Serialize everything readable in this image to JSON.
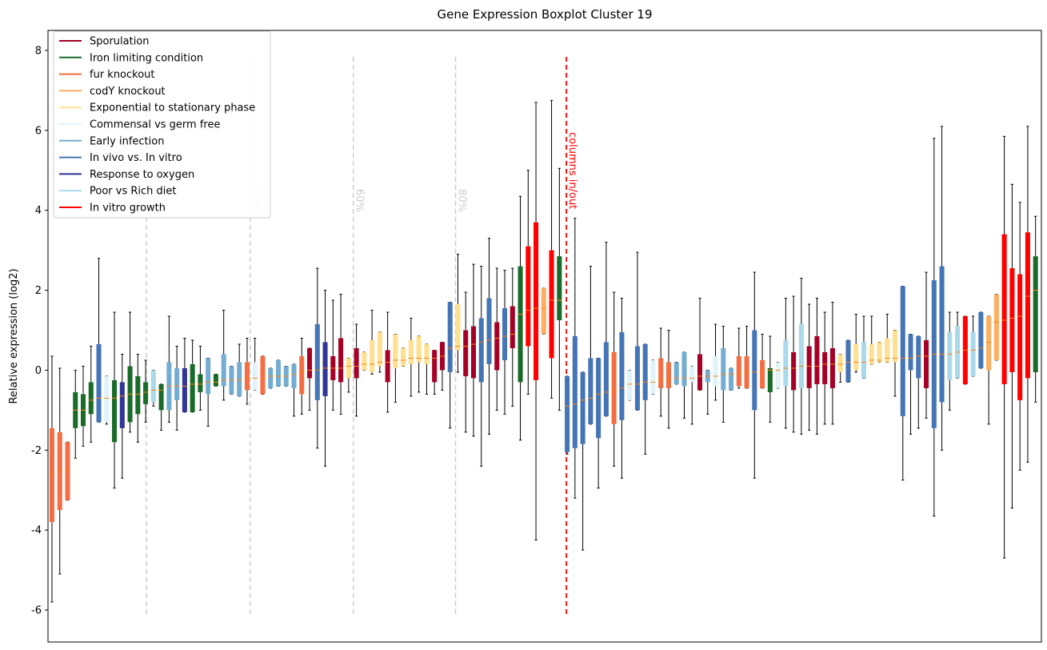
{
  "chart_data": {
    "type": "boxplot",
    "title": "Gene Expression Boxplot Cluster 19",
    "y_label": "Relative expression (log2)",
    "ylim": [
      -6.8,
      8.5
    ],
    "yticks": [
      -6,
      -4,
      -2,
      0,
      2,
      4,
      6,
      8
    ],
    "xlim": [
      0.49,
      127.75
    ],
    "median_color": "#ff7f0e",
    "legend_position": "upper left",
    "series": [
      {
        "name": "Sporulation",
        "color": "#a50026"
      },
      {
        "name": "Iron limiting condition",
        "color": "#1a6b2a"
      },
      {
        "name": "fur knockout",
        "color": "#f46d43"
      },
      {
        "name": "codY knockout",
        "color": "#fdae61"
      },
      {
        "name": "Exponential to stationary phase",
        "color": "#fee090"
      },
      {
        "name": "Commensal vs germ free",
        "color": "#e0f3f8"
      },
      {
        "name": "Early infection",
        "color": "#74add1"
      },
      {
        "name": "In vivo vs. In vitro",
        "color": "#4575b4"
      },
      {
        "name": "Response to oxygen",
        "color": "#313695"
      },
      {
        "name": "Poor vs Rich diet",
        "color": "#abd9e9"
      },
      {
        "name": "In vitro growth",
        "color": "#ff0000"
      }
    ],
    "vline_ylim": [
      -6.1,
      7.9
    ],
    "vlines": [
      {
        "x": 13.1,
        "color": "#cccccc"
      },
      {
        "x": 26.4,
        "label": "40%",
        "color": "#cccccc"
      },
      {
        "x": 39.6,
        "label": "60%",
        "color": "#cccccc"
      },
      {
        "x": 52.7,
        "label": "80%",
        "color": "#cccccc"
      },
      {
        "x": 66.9,
        "label": "columns in/out",
        "color": "#ff0000"
      }
    ],
    "boxes": {
      "x": [
        1,
        2,
        3,
        4,
        5,
        6,
        7,
        8,
        9,
        10,
        11,
        12,
        13,
        14,
        15,
        16,
        17,
        18,
        19,
        20,
        21,
        22,
        23,
        24,
        25,
        26,
        27,
        28,
        29,
        30,
        31,
        32,
        33,
        34,
        35,
        36,
        37,
        38,
        39,
        40,
        41,
        42,
        43,
        44,
        45,
        46,
        47,
        48,
        49,
        50,
        51,
        52,
        53,
        54,
        55,
        56,
        57,
        58,
        59,
        60,
        61,
        62,
        63,
        64,
        65,
        66,
        67,
        68,
        69,
        70,
        71,
        72,
        73,
        74,
        75,
        76,
        77,
        78,
        79,
        80,
        81,
        82,
        83,
        84,
        85,
        86,
        87,
        88,
        89,
        90,
        91,
        92,
        93,
        94,
        95,
        96,
        97,
        98,
        99,
        100,
        101,
        102,
        103,
        104,
        105,
        106,
        107,
        108,
        109,
        110,
        111,
        112,
        113,
        114,
        115,
        116,
        117,
        118,
        119,
        120,
        121,
        122,
        123,
        124,
        125,
        126,
        127
      ],
      "whislo": [
        -5.8,
        -5.1,
        -3.25,
        -2.2,
        -1.9,
        -1.8,
        -1.3,
        -1.35,
        -2.95,
        -2.7,
        -1.55,
        -1.8,
        -1.3,
        -0.9,
        -1.5,
        -1.3,
        -1.5,
        -1.05,
        -1.05,
        -1.0,
        -1.4,
        -0.4,
        -0.75,
        -0.6,
        -0.65,
        -0.85,
        -0.5,
        -0.6,
        -0.45,
        -0.4,
        -0.4,
        -1.15,
        -1.1,
        -1.0,
        -1.95,
        -2.4,
        -1.0,
        -1.1,
        -0.55,
        -1.15,
        0.0,
        -0.1,
        -0.05,
        -1.05,
        -0.8,
        0.1,
        -0.65,
        -0.55,
        -0.6,
        -0.6,
        -0.5,
        -1.45,
        -0.05,
        -1.55,
        -1.65,
        -2.4,
        -1.6,
        -1.0,
        -1.1,
        -0.9,
        -1.75,
        -0.6,
        -4.25,
        0.9,
        -0.7,
        -1.0,
        -2.1,
        -3.2,
        -4.5,
        -1.35,
        -2.95,
        -1.15,
        -2.4,
        -2.7,
        -0.75,
        -1.0,
        -2.1,
        -0.6,
        -1.15,
        -1.45,
        -0.35,
        -1.2,
        -1.35,
        -0.5,
        -1.1,
        -0.75,
        -1.3,
        -0.5,
        -0.45,
        -0.45,
        -2.7,
        -0.45,
        -1.3,
        -0.45,
        -1.45,
        -1.55,
        -1.6,
        -1.5,
        -1.6,
        -1.35,
        -1.35,
        -0.3,
        -0.3,
        -0.05,
        -0.2,
        0.15,
        0.2,
        0.2,
        -0.65,
        -2.75,
        -1.6,
        -1.45,
        -1.2,
        -3.65,
        -2.0,
        -1.0,
        -0.2,
        -0.35,
        -0.15,
        0.05,
        -1.35,
        0.25,
        -4.7,
        -3.45,
        -2.5,
        -2.3,
        -0.8
      ],
      "q1": [
        -3.8,
        -3.5,
        -3.25,
        -1.45,
        -1.4,
        -1.1,
        -1.3,
        -1.3,
        -1.8,
        -1.45,
        -1.3,
        -1.1,
        -0.85,
        -0.8,
        -1.0,
        -1.0,
        -0.75,
        -1.05,
        -1.05,
        -0.55,
        -0.6,
        -0.4,
        -0.4,
        -0.6,
        -0.65,
        -0.5,
        -0.5,
        -0.6,
        -0.45,
        -0.4,
        -0.4,
        -0.45,
        -0.6,
        -0.2,
        -0.75,
        -0.65,
        -0.25,
        -0.3,
        -0.2,
        -0.2,
        0.0,
        -0.05,
        0.1,
        -0.3,
        0.05,
        0.1,
        0.15,
        0.2,
        0.15,
        -0.3,
        0.0,
        -0.05,
        0.5,
        -0.15,
        -0.2,
        -0.3,
        0.15,
        0.0,
        0.25,
        0.55,
        -0.3,
        0.6,
        -0.25,
        0.9,
        0.3,
        1.25,
        -2.05,
        -1.95,
        -1.85,
        -1.35,
        -1.7,
        -1.15,
        -1.35,
        -1.25,
        -0.75,
        -1.0,
        -0.75,
        -0.6,
        -0.45,
        -0.45,
        -0.35,
        -0.4,
        -0.3,
        -0.5,
        -0.3,
        -0.4,
        -0.5,
        -0.5,
        -0.4,
        -0.45,
        -1.0,
        -0.45,
        -0.55,
        -0.45,
        -0.4,
        -0.5,
        -0.45,
        -0.45,
        -0.35,
        -0.35,
        -0.45,
        -0.05,
        -0.3,
        0.0,
        -0.2,
        0.15,
        0.2,
        0.2,
        0.2,
        -1.15,
        0.0,
        -0.2,
        -0.45,
        -1.45,
        -0.8,
        -0.25,
        -0.2,
        -0.35,
        -0.15,
        0.05,
        0.0,
        0.25,
        -0.35,
        -0.05,
        -0.75,
        -0.2,
        -0.05
      ],
      "median": [
        -2.6,
        -2.5,
        -2.5,
        -1.0,
        -1.0,
        -0.75,
        -0.7,
        -0.7,
        -0.7,
        -0.65,
        -0.6,
        -0.6,
        -0.55,
        -0.5,
        -0.5,
        -0.4,
        -0.4,
        -0.4,
        -0.35,
        -0.35,
        -0.3,
        -0.3,
        -0.25,
        -0.25,
        -0.25,
        -0.2,
        -0.2,
        -0.2,
        -0.15,
        -0.15,
        -0.15,
        -0.1,
        -0.05,
        0.0,
        0.0,
        0.05,
        0.05,
        0.05,
        0.1,
        0.1,
        0.15,
        0.15,
        0.2,
        0.2,
        0.25,
        0.25,
        0.3,
        0.3,
        0.3,
        0.3,
        0.35,
        0.55,
        0.6,
        0.6,
        0.65,
        0.7,
        0.75,
        0.8,
        0.85,
        0.9,
        1.4,
        1.5,
        1.55,
        1.55,
        1.75,
        1.75,
        -0.9,
        -0.85,
        -0.75,
        -0.7,
        -0.6,
        -0.55,
        -0.5,
        -0.45,
        -0.35,
        -0.35,
        -0.3,
        -0.3,
        -0.25,
        -0.25,
        -0.2,
        -0.2,
        -0.2,
        -0.15,
        -0.15,
        -0.15,
        -0.1,
        -0.1,
        -0.1,
        -0.05,
        -0.05,
        0.0,
        0.0,
        0.0,
        0.05,
        0.05,
        0.1,
        0.1,
        0.1,
        0.15,
        0.15,
        0.15,
        0.2,
        0.2,
        0.2,
        0.25,
        0.25,
        0.3,
        0.3,
        0.3,
        0.3,
        0.35,
        0.35,
        0.4,
        0.4,
        0.4,
        0.45,
        0.5,
        0.5,
        0.55,
        0.7,
        1.2,
        1.25,
        1.3,
        1.35,
        1.85,
        2.0
      ],
      "q3": [
        -1.45,
        -1.55,
        -1.8,
        -0.55,
        -0.6,
        -0.3,
        0.65,
        -0.15,
        -0.25,
        -0.3,
        0.1,
        -0.15,
        -0.3,
        0.0,
        -0.35,
        0.2,
        0.05,
        0.05,
        0.15,
        -0.1,
        0.3,
        -0.1,
        0.4,
        0.1,
        0.2,
        0.2,
        0.2,
        0.35,
        0.05,
        0.25,
        0.1,
        0.15,
        0.35,
        0.55,
        1.15,
        0.7,
        0.35,
        0.8,
        0.3,
        0.55,
        0.45,
        0.75,
        0.95,
        0.5,
        0.9,
        0.55,
        0.75,
        0.85,
        0.65,
        0.5,
        0.7,
        1.7,
        1.65,
        1.0,
        1.1,
        1.3,
        1.8,
        1.2,
        1.55,
        1.6,
        2.6,
        3.1,
        3.7,
        2.05,
        3.0,
        2.85,
        -0.15,
        0.85,
        -0.05,
        0.3,
        0.3,
        0.7,
        0.45,
        0.95,
        0.0,
        0.6,
        0.65,
        0.25,
        0.3,
        0.2,
        0.2,
        0.45,
        0.1,
        0.4,
        0.0,
        0.35,
        0.55,
        0.05,
        0.35,
        0.35,
        1.0,
        0.25,
        0.05,
        0.2,
        0.75,
        0.45,
        1.15,
        0.6,
        0.85,
        0.45,
        0.55,
        0.4,
        0.75,
        0.65,
        0.7,
        0.65,
        0.7,
        0.8,
        1.0,
        2.1,
        0.9,
        0.85,
        0.75,
        2.25,
        2.6,
        0.95,
        1.1,
        1.35,
        0.95,
        1.45,
        1.35,
        1.9,
        3.4,
        2.55,
        2.4,
        3.45,
        2.85
      ],
      "whishi": [
        0.35,
        0.05,
        -1.8,
        0.0,
        0.1,
        0.6,
        2.8,
        -0.15,
        1.45,
        0.4,
        1.45,
        0.4,
        0.25,
        0.0,
        -0.35,
        1.35,
        0.6,
        0.8,
        0.75,
        0.6,
        0.3,
        -0.1,
        1.5,
        0.1,
        0.65,
        0.8,
        0.8,
        0.35,
        0.05,
        0.25,
        0.1,
        0.15,
        0.8,
        0.55,
        2.55,
        2.0,
        1.75,
        1.9,
        0.3,
        1.15,
        0.45,
        1.5,
        0.95,
        1.45,
        0.9,
        0.55,
        1.3,
        0.85,
        0.65,
        0.5,
        0.7,
        1.7,
        2.9,
        1.95,
        2.65,
        2.6,
        3.3,
        2.55,
        2.5,
        2.55,
        4.35,
        5.0,
        6.7,
        2.05,
        6.75,
        5.05,
        -0.15,
        3.8,
        -0.05,
        2.6,
        0.3,
        3.2,
        1.95,
        1.8,
        0.0,
        2.95,
        0.65,
        0.25,
        1.05,
        1.0,
        0.2,
        0.45,
        0.1,
        1.8,
        0.0,
        1.15,
        1.1,
        0.05,
        1.05,
        1.1,
        2.45,
        0.9,
        0.85,
        0.2,
        1.8,
        1.85,
        2.3,
        1.65,
        1.8,
        1.45,
        1.7,
        0.4,
        0.75,
        1.4,
        1.35,
        1.35,
        0.7,
        1.4,
        1.0,
        2.1,
        0.9,
        0.85,
        2.45,
        5.8,
        6.1,
        1.45,
        1.45,
        1.35,
        1.35,
        1.45,
        1.35,
        1.9,
        5.85,
        4.65,
        4.2,
        6.1,
        3.85
      ],
      "colors": [
        "#f46d43",
        "#f46d43",
        "#f46d43",
        "#1a6b2a",
        "#1a6b2a",
        "#1a6b2a",
        "#4575b4",
        "#e0f3f8",
        "#1a6b2a",
        "#313695",
        "#1a6b2a",
        "#1a6b2a",
        "#1a6b2a",
        "#abd9e9",
        "#1a6b2a",
        "#74add1",
        "#74add1",
        "#313695",
        "#1a6b2a",
        "#1a6b2a",
        "#74add1",
        "#1a6b2a",
        "#74add1",
        "#74add1",
        "#74add1",
        "#f46d43",
        "#e0f3f8",
        "#f46d43",
        "#74add1",
        "#74add1",
        "#74add1",
        "#74add1",
        "#f46d43",
        "#a50026",
        "#4575b4",
        "#313695",
        "#a50026",
        "#a50026",
        "#fee090",
        "#a50026",
        "#fee090",
        "#fee090",
        "#fee090",
        "#a50026",
        "#fee090",
        "#fee090",
        "#fee090",
        "#fee090",
        "#fee090",
        "#a50026",
        "#a50026",
        "#4575b4",
        "#fee090",
        "#a50026",
        "#a50026",
        "#4575b4",
        "#4575b4",
        "#a50026",
        "#4575b4",
        "#a50026",
        "#1a6b2a",
        "#ff0000",
        "#ff0000",
        "#fdae61",
        "#ff0000",
        "#1a6b2a",
        "#4575b4",
        "#4575b4",
        "#4575b4",
        "#4575b4",
        "#4575b4",
        "#4575b4",
        "#f46d43",
        "#4575b4",
        "#e0f3f8",
        "#4575b4",
        "#4575b4",
        "#e0f3f8",
        "#f46d43",
        "#f46d43",
        "#74add1",
        "#74add1",
        "#e0f3f8",
        "#a50026",
        "#74add1",
        "#e0f3f8",
        "#74add1",
        "#74add1",
        "#f46d43",
        "#f46d43",
        "#4575b4",
        "#f46d43",
        "#1a6b2a",
        "#e0f3f8",
        "#abd9e9",
        "#a50026",
        "#abd9e9",
        "#a50026",
        "#a50026",
        "#a50026",
        "#a50026",
        "#fee090",
        "#4575b4",
        "#fee090",
        "#abd9e9",
        "#fee090",
        "#fee090",
        "#fee090",
        "#fee090",
        "#4575b4",
        "#4575b4",
        "#4575b4",
        "#a50026",
        "#4575b4",
        "#4575b4",
        "#abd9e9",
        "#abd9e9",
        "#ff0000",
        "#abd9e9",
        "#4575b4",
        "#fdae61",
        "#fdae61",
        "#ff0000",
        "#ff0000",
        "#ff0000",
        "#ff0000",
        "#1a6b2a"
      ]
    }
  }
}
